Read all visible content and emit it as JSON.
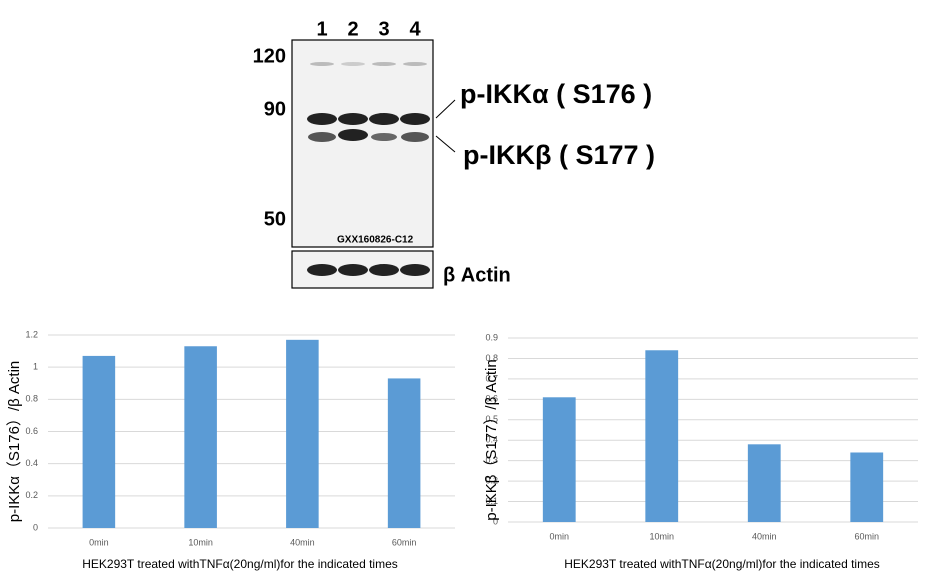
{
  "blot": {
    "lanes": [
      1,
      2,
      3,
      4
    ],
    "markers": [
      120,
      90,
      50
    ],
    "band_labels": [
      "p-IKKα ( S176 )",
      "p-IKKβ ( S177 )"
    ],
    "code": "GXX160826-C12",
    "loading_label": "β Actin"
  },
  "chart_data": [
    {
      "type": "bar",
      "ylabel": "p-IKKα（S176）/β Actin",
      "xlabel": "HEK293T treated withTNFα(20ng/ml)for the indicated times",
      "categories": [
        "0min",
        "10min",
        "40min",
        "60min"
      ],
      "values": [
        1.07,
        1.13,
        1.17,
        0.93
      ],
      "color": "#5b9bd5",
      "ylim": [
        0,
        1.2
      ],
      "yticks": [
        0,
        0.2,
        0.4,
        0.6,
        0.8,
        1,
        1.2
      ],
      "grid": true
    },
    {
      "type": "bar",
      "ylabel": "p-IKKβ（S177）/β Actin",
      "xlabel": "HEK293T treated withTNFα(20ng/ml)for the indicated times",
      "categories": [
        "0min",
        "10min",
        "40min",
        "60min"
      ],
      "values": [
        0.61,
        0.84,
        0.38,
        0.34
      ],
      "color": "#5b9bd5",
      "ylim": [
        0,
        0.9
      ],
      "yticks": [
        0,
        0.1,
        0.2,
        0.3,
        0.4,
        0.5,
        0.6,
        0.7,
        0.8,
        0.9
      ],
      "grid": true
    }
  ]
}
